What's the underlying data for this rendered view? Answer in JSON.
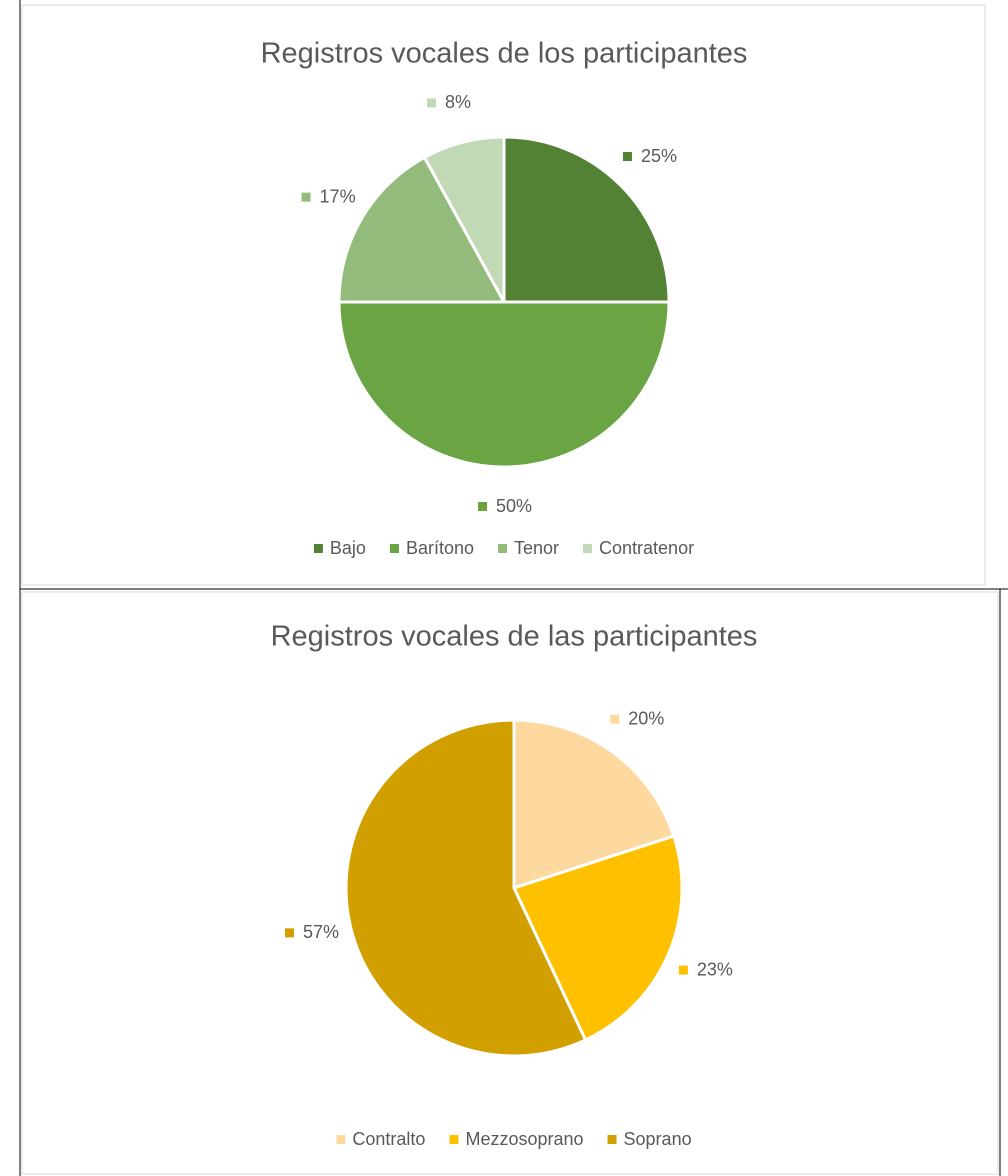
{
  "chart_data": [
    {
      "type": "pie",
      "title": "Registros vocales de los participantes",
      "categories": [
        "Bajo",
        "Barítono",
        "Tenor",
        "Contratenor"
      ],
      "values": [
        25,
        50,
        17,
        8
      ],
      "value_labels": [
        "25%",
        "50%",
        "17%",
        "8%"
      ],
      "colors": [
        "#548235",
        "#6aa443",
        "#93bb7b",
        "#c1d9b4"
      ],
      "legend": "bottom"
    },
    {
      "type": "pie",
      "title": "Registros vocales de las participantes",
      "categories": [
        "Contralto",
        "Mezzosoprano",
        "Soprano"
      ],
      "values": [
        20,
        23,
        57
      ],
      "value_labels": [
        "20%",
        "23%",
        "57%"
      ],
      "colors": [
        "#fdd9a0",
        "#ffc000",
        "#d19f00"
      ],
      "legend": "bottom"
    }
  ]
}
